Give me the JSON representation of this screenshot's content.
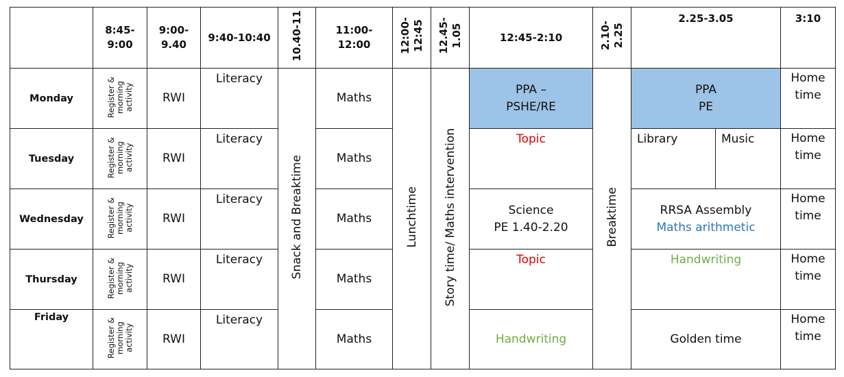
{
  "headers": {
    "blank": "",
    "t1": "8:45-\n9:00",
    "t2": "9:00-\n9.40",
    "t3": "9:40-10:40",
    "t4": "10.40-11",
    "t5": "11:00-\n12:00",
    "t6": "12:00-\n12:45",
    "t7": "12.45-\n1.05",
    "t8": "12:45-2:10",
    "t9": "2.10-\n2.25",
    "t10": "2.25-3.05",
    "t11": "3:10"
  },
  "days": [
    "Monday",
    "Tuesday",
    "Wednesday",
    "Thursday",
    "Friday"
  ],
  "register": "Register &\nmorning\nactivity",
  "rwi": "RWI",
  "literacy": "Literacy",
  "maths": "Maths",
  "snack": "Snack and Breaktime",
  "lunch": "Lunchtime",
  "story": "Story time/ Maths intervention",
  "breaktime": "Breaktime",
  "afternoon": {
    "mon_1": "PPA –\nPSHE/RE",
    "mon_2": "PPA\nPE",
    "tue_1": "Topic",
    "tue_2a": "Library",
    "tue_2b": "Music",
    "wed_1": "Science\nPE 1.40-2.20",
    "wed_2a": "RRSA Assembly",
    "wed_2b": "Maths arithmetic",
    "thu_1": "Topic",
    "thu_2": "Handwriting",
    "fri_1": "Handwriting",
    "fri_2": "Golden time"
  },
  "home": "Home\ntime",
  "colors": {
    "ppa_fill": "#9dc3e6",
    "topic_red": "#e00000",
    "handwriting_green": "#70ad47",
    "arithmetic_blue": "#2e75b6"
  }
}
